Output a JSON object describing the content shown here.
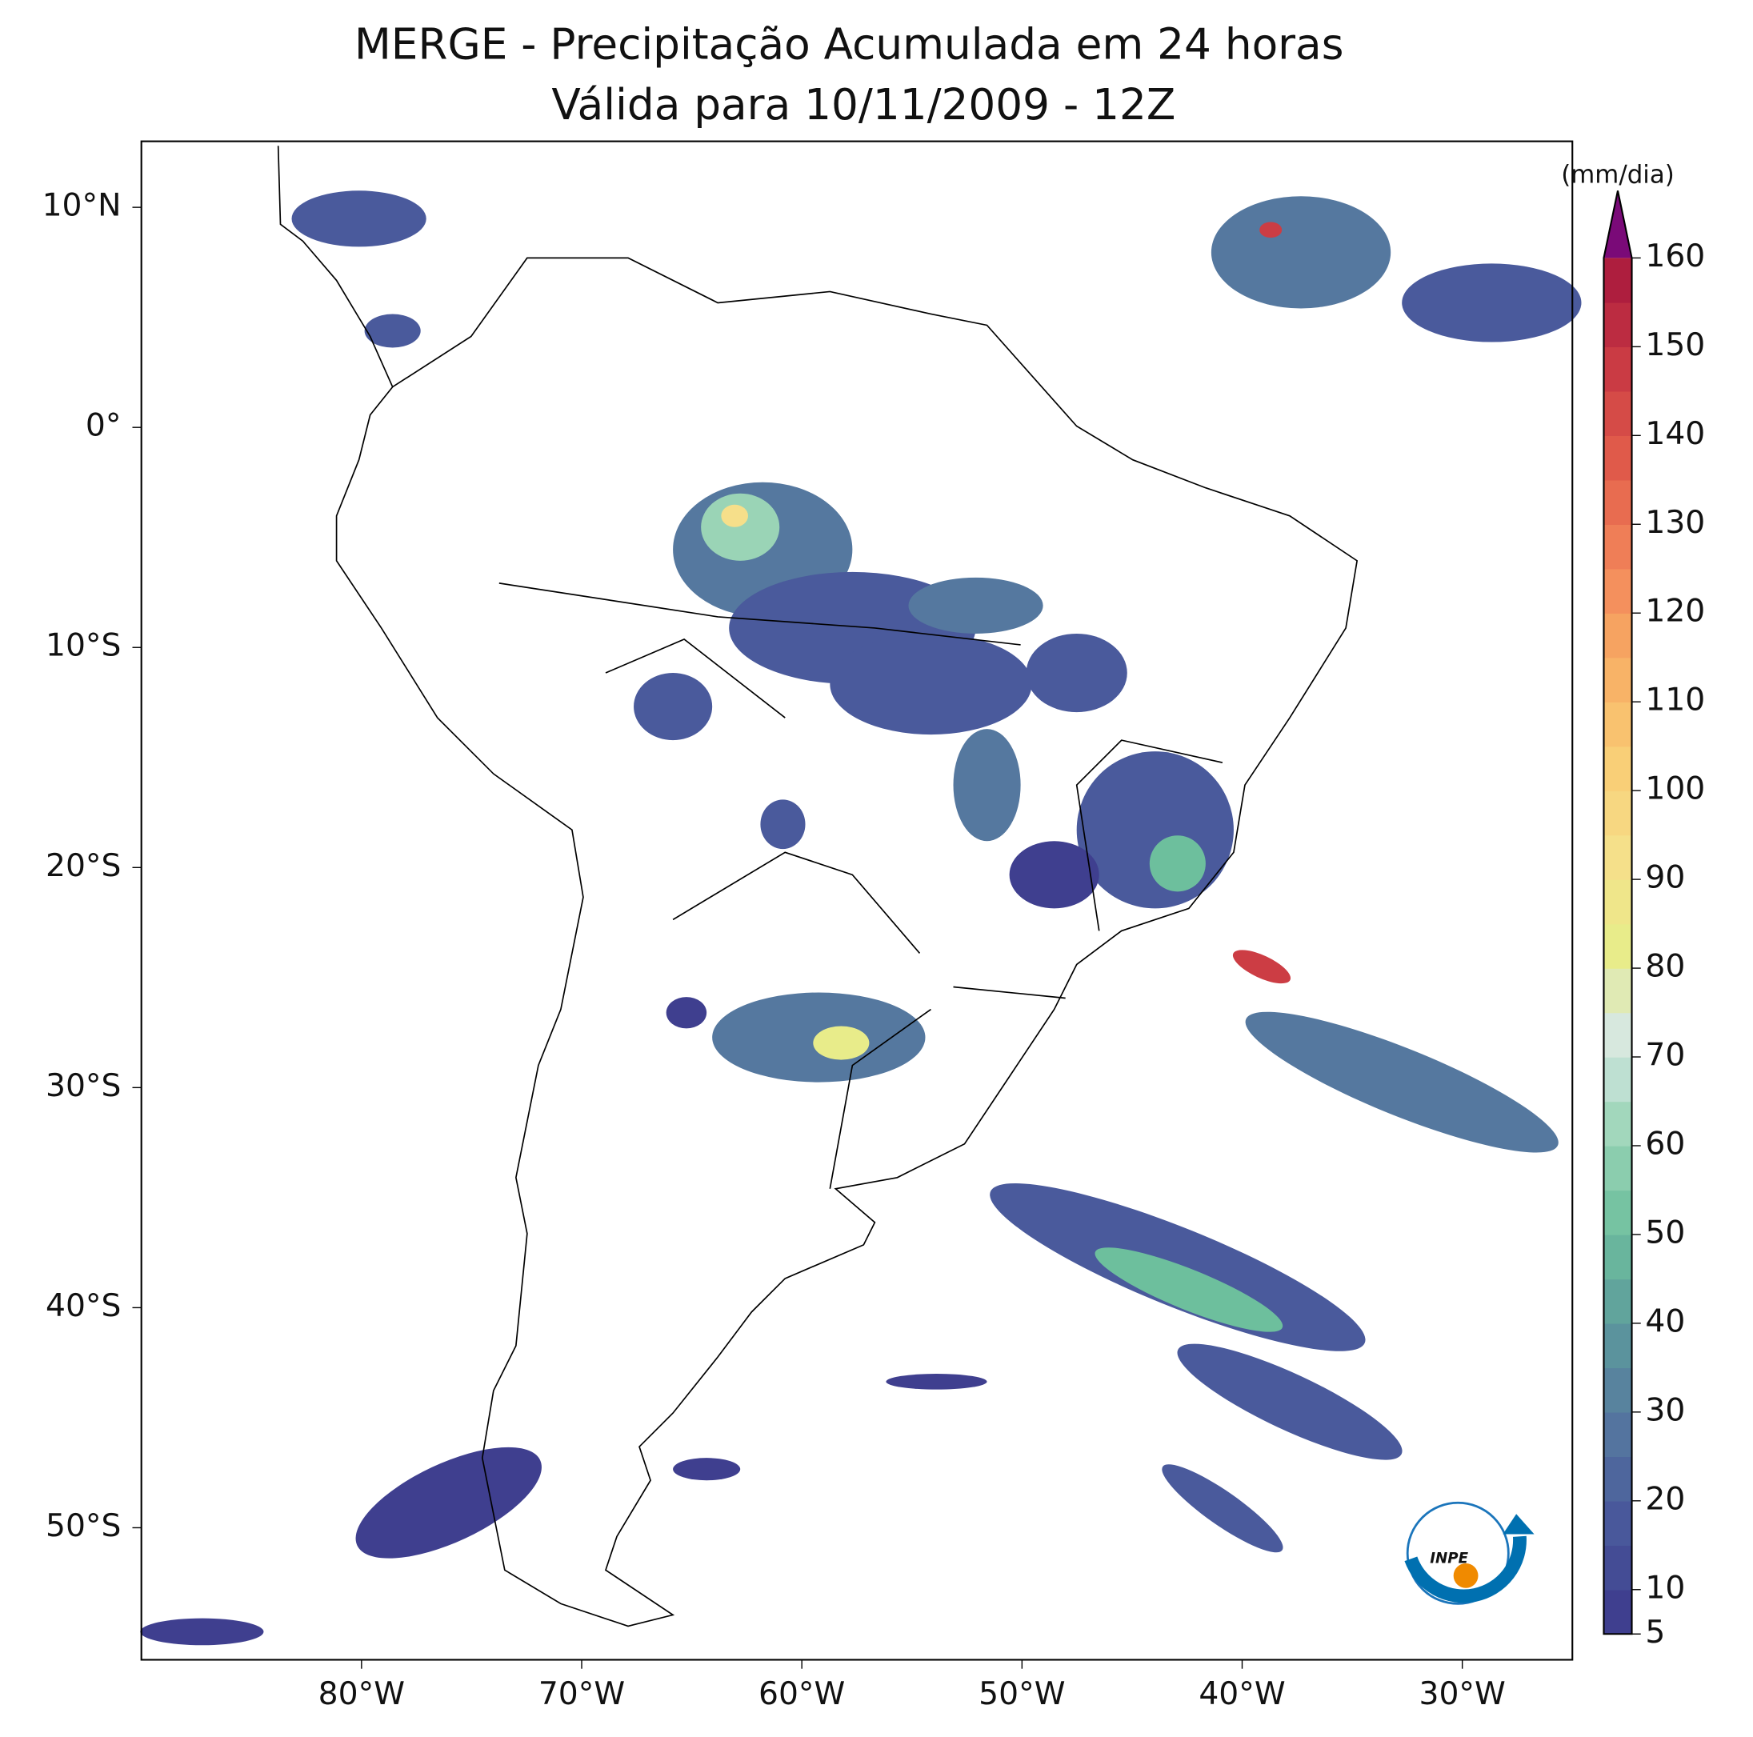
{
  "title": "MERGE - Precipitação Acumulada em 24 horas",
  "subtitle": "Válida para 10/11/2009 - 12Z",
  "map": {
    "xlim": [
      -90,
      -25
    ],
    "ylim": [
      -56,
      13
    ],
    "xticks": [
      {
        "value": -80,
        "label": "80°W"
      },
      {
        "value": -70,
        "label": "70°W"
      },
      {
        "value": -60,
        "label": "60°W"
      },
      {
        "value": -50,
        "label": "50°W"
      },
      {
        "value": -40,
        "label": "40°W"
      },
      {
        "value": -30,
        "label": "30°W"
      }
    ],
    "yticks": [
      {
        "value": 10,
        "label": "10°N"
      },
      {
        "value": 0,
        "label": "0°"
      },
      {
        "value": -10,
        "label": "10°S"
      },
      {
        "value": -20,
        "label": "20°S"
      },
      {
        "value": -30,
        "label": "30°S"
      },
      {
        "value": -40,
        "label": "40°S"
      },
      {
        "value": -50,
        "label": "50°S"
      }
    ]
  },
  "colorbar": {
    "label": "(mm/dia)",
    "lim": [
      5,
      160
    ],
    "ticks": [
      5,
      10,
      20,
      30,
      40,
      50,
      60,
      70,
      80,
      90,
      100,
      110,
      120,
      130,
      140,
      150,
      160
    ],
    "colors": [
      "#3f3f8f",
      "#4a5a9c",
      "#55789f",
      "#5d9a9c",
      "#6dbf9d",
      "#9ad4b6",
      "#d6e8e4",
      "#e8ec8a",
      "#f6df8a",
      "#f9cc74",
      "#f8ad64",
      "#f2865a",
      "#e35f4b",
      "#cc3d44",
      "#ae1e3e"
    ],
    "extend_color": "#7a0a78"
  }
}
